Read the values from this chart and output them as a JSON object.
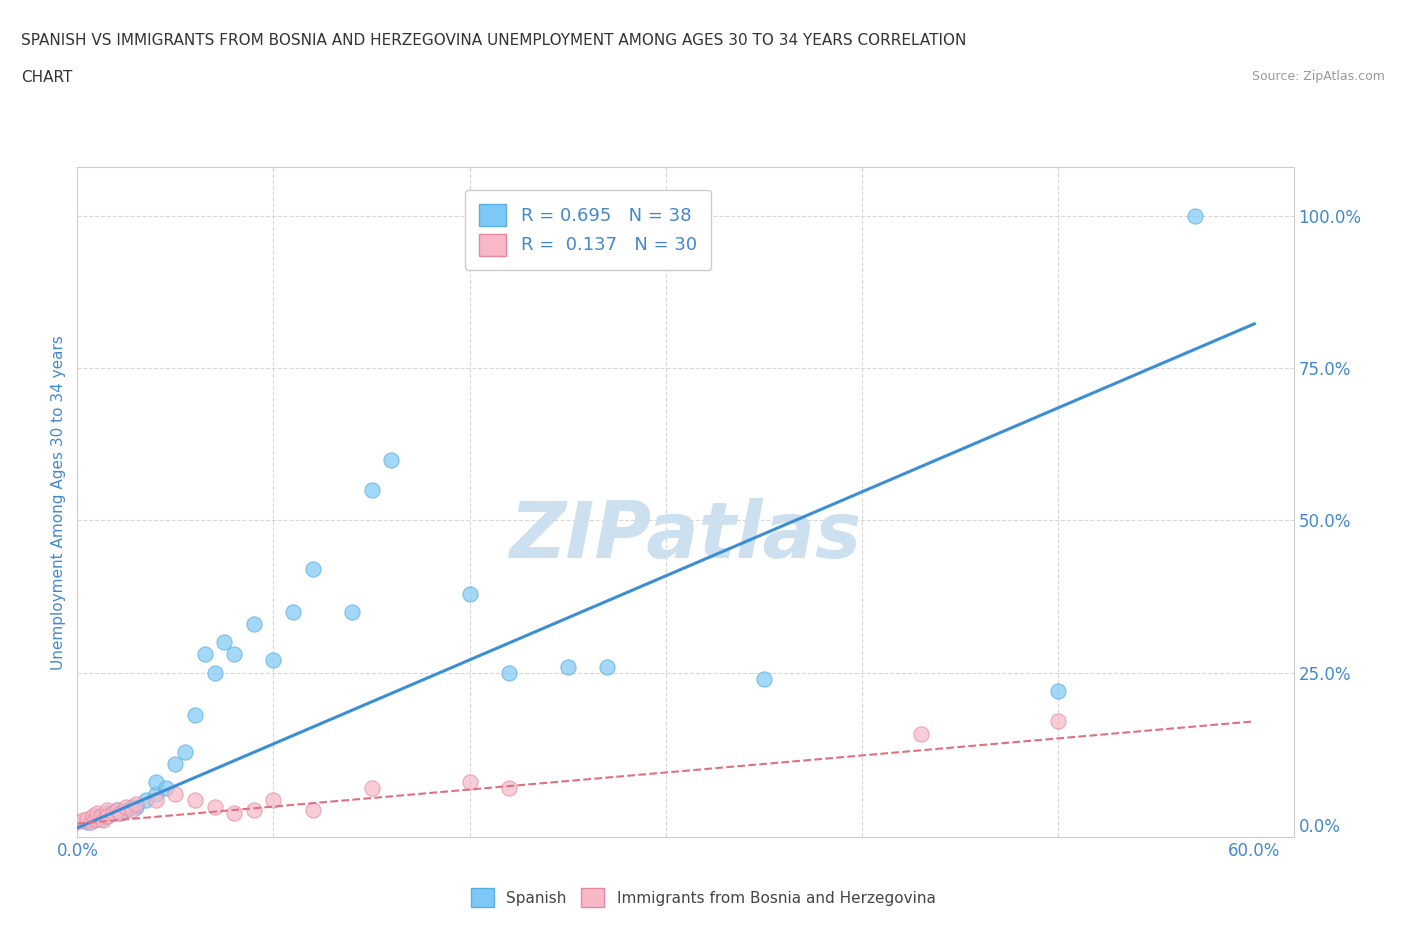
{
  "title_line1": "SPANISH VS IMMIGRANTS FROM BOSNIA AND HERZEGOVINA UNEMPLOYMENT AMONG AGES 30 TO 34 YEARS CORRELATION",
  "title_line2": "CHART",
  "source_text": "Source: ZipAtlas.com",
  "ylabel": "Unemployment Among Ages 30 to 34 years",
  "xlim": [
    0.0,
    0.62
  ],
  "ylim": [
    -0.02,
    1.08
  ],
  "x_ticks": [
    0.0,
    0.1,
    0.2,
    0.3,
    0.4,
    0.5,
    0.6
  ],
  "x_tick_labels": [
    "0.0%",
    "",
    "",
    "",
    "",
    "",
    "60.0%"
  ],
  "y_ticks": [
    0.0,
    0.25,
    0.5,
    0.75,
    1.0
  ],
  "y_tick_labels": [
    "0.0%",
    "25.0%",
    "50.0%",
    "75.0%",
    "100.0%"
  ],
  "background_color": "#ffffff",
  "grid_color": "#d8d8d8",
  "blue_color": "#7ec8f7",
  "blue_edge_color": "#5aaede",
  "pink_color": "#f7b8c8",
  "pink_edge_color": "#e888a0",
  "line_blue_color": "#3a8fd4",
  "line_pink_color": "#e07080",
  "watermark_text": "ZIPatlas",
  "watermark_color": "#cce0f0",
  "legend_text_color": "#4488cc",
  "axis_label_color": "#4488cc",
  "tick_label_color": "#4488cc",
  "spanish_x": [
    0.005,
    0.008,
    0.01,
    0.01,
    0.012,
    0.015,
    0.015,
    0.018,
    0.02,
    0.022,
    0.025,
    0.028,
    0.03,
    0.035,
    0.04,
    0.04,
    0.045,
    0.05,
    0.055,
    0.06,
    0.065,
    0.07,
    0.075,
    0.08,
    0.09,
    0.1,
    0.11,
    0.12,
    0.14,
    0.15,
    0.16,
    0.2,
    0.22,
    0.25,
    0.27,
    0.35,
    0.5,
    0.57
  ],
  "spanish_y": [
    0.005,
    0.008,
    0.01,
    0.015,
    0.01,
    0.02,
    0.015,
    0.02,
    0.025,
    0.02,
    0.025,
    0.03,
    0.03,
    0.04,
    0.05,
    0.07,
    0.06,
    0.1,
    0.12,
    0.18,
    0.28,
    0.25,
    0.3,
    0.28,
    0.33,
    0.27,
    0.35,
    0.42,
    0.35,
    0.55,
    0.6,
    0.38,
    0.25,
    0.26,
    0.26,
    0.24,
    0.22,
    1.0
  ],
  "bosnia_x": [
    0.0,
    0.003,
    0.005,
    0.007,
    0.008,
    0.009,
    0.01,
    0.012,
    0.013,
    0.015,
    0.015,
    0.018,
    0.02,
    0.022,
    0.025,
    0.028,
    0.03,
    0.04,
    0.05,
    0.06,
    0.07,
    0.08,
    0.09,
    0.1,
    0.12,
    0.15,
    0.2,
    0.22,
    0.43,
    0.5
  ],
  "bosnia_y": [
    0.005,
    0.008,
    0.01,
    0.005,
    0.015,
    0.01,
    0.02,
    0.015,
    0.008,
    0.025,
    0.015,
    0.02,
    0.025,
    0.02,
    0.03,
    0.025,
    0.035,
    0.04,
    0.05,
    0.04,
    0.03,
    0.02,
    0.025,
    0.04,
    0.025,
    0.06,
    0.07,
    0.06,
    0.15,
    0.17
  ]
}
